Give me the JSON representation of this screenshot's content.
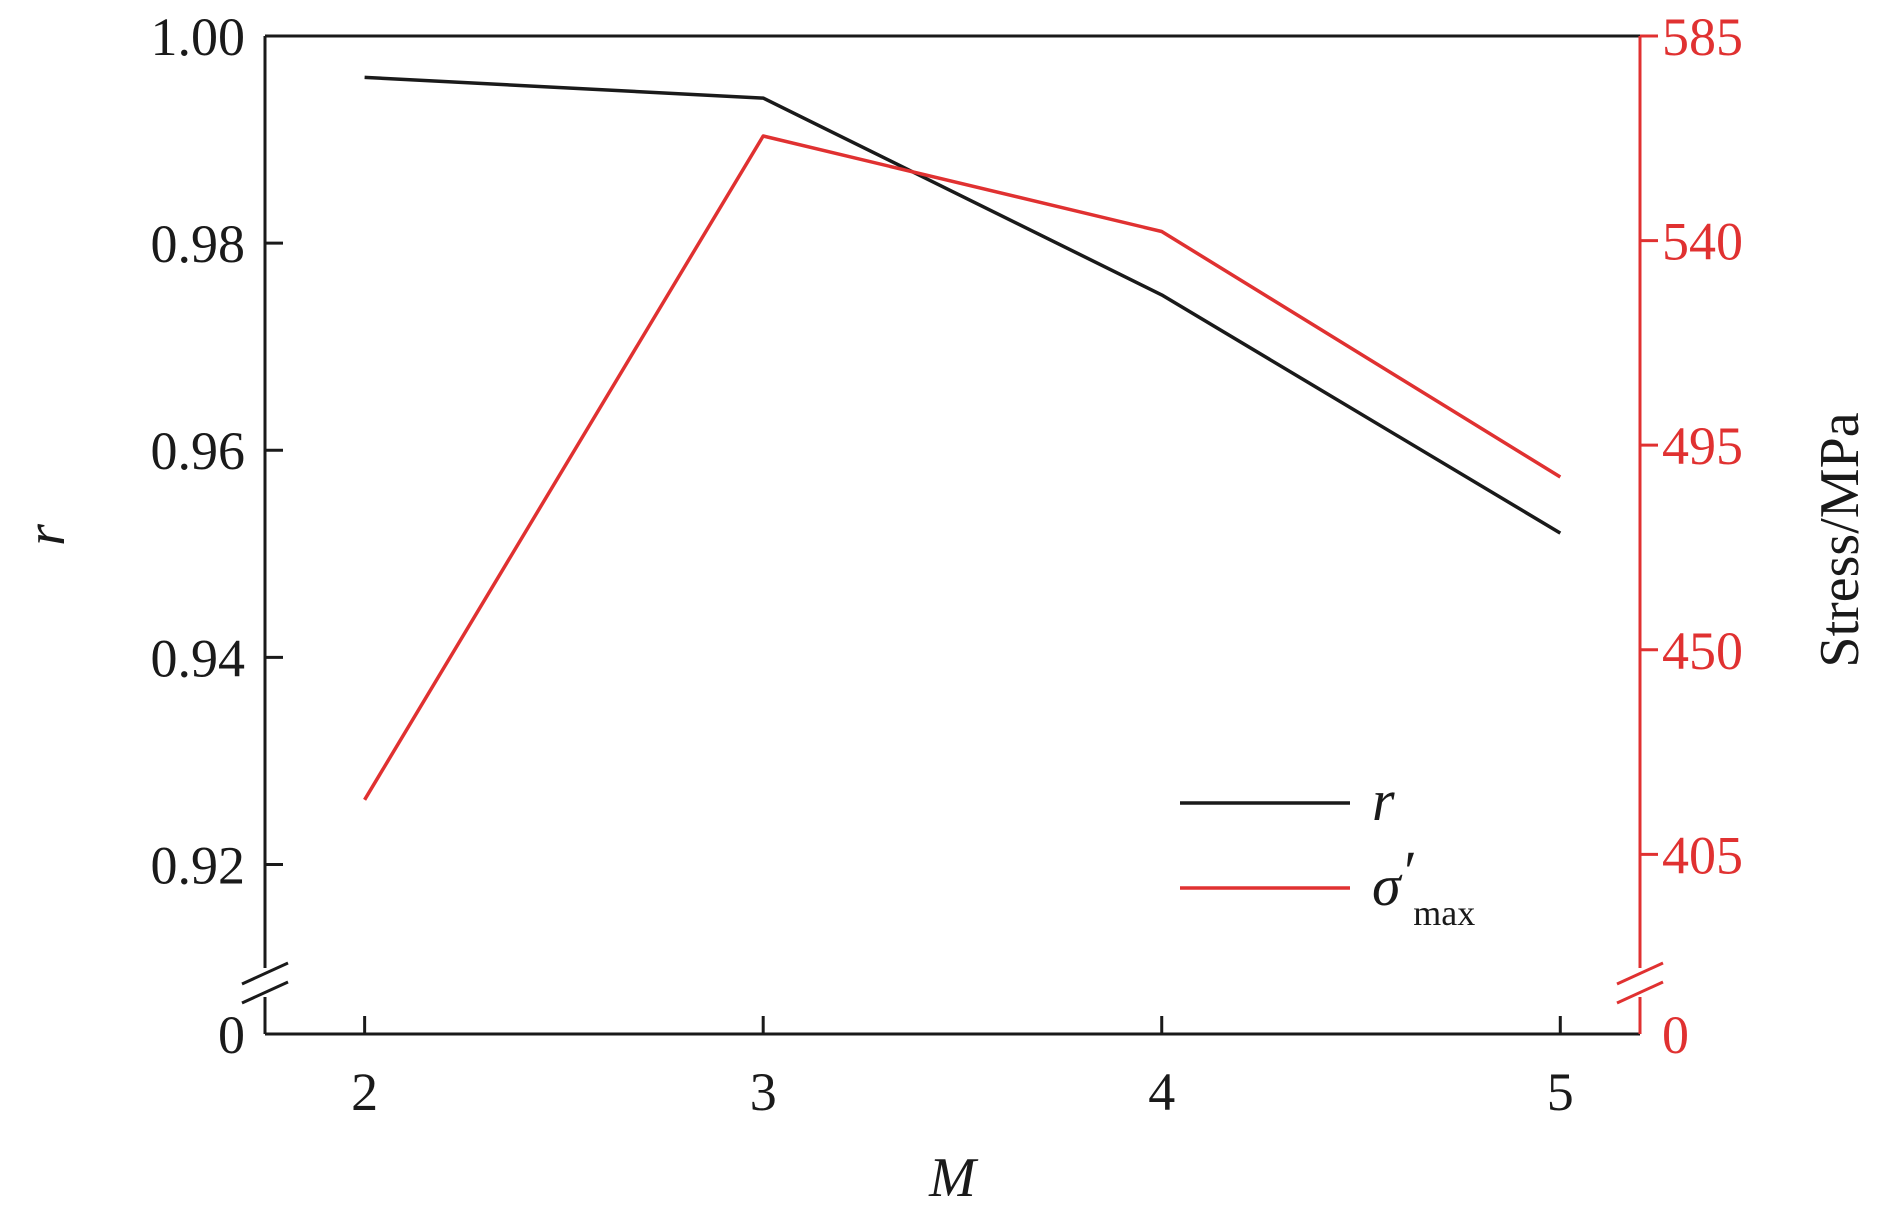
{
  "chart_data": {
    "type": "line",
    "x": [
      2,
      3,
      4,
      5
    ],
    "xlabel": "M",
    "x_ticks": [
      "2",
      "3",
      "4",
      "5"
    ],
    "xlim": [
      1.75,
      5.2
    ],
    "left_axis": {
      "label": "r",
      "ylim": [
        0.91,
        1.0
      ],
      "ticks": [
        1.0,
        0.98,
        0.96,
        0.94,
        0.92
      ],
      "tick_labels": [
        "1.00",
        "0.98",
        "0.96",
        "0.94",
        "0.92"
      ],
      "break_label": "0"
    },
    "right_axis": {
      "label": "Stress/MPa",
      "ylim": [
        380,
        585
      ],
      "ticks": [
        585,
        540,
        495,
        450,
        405
      ],
      "tick_labels": [
        "585",
        "540",
        "495",
        "450",
        "405"
      ],
      "break_label": "0",
      "color": "#e03131"
    },
    "series": [
      {
        "name": "r",
        "axis": "left",
        "color": "#1a1a1a",
        "values": [
          0.996,
          0.994,
          0.975,
          0.952
        ]
      },
      {
        "name": "σ′max",
        "axis": "right",
        "color": "#e03131",
        "values": [
          417,
          563,
          542,
          488
        ]
      }
    ],
    "legend": {
      "position": "lower-right",
      "items": [
        {
          "symbol": "r",
          "sub": "",
          "prime": ""
        },
        {
          "symbol": "σ",
          "prime": "′",
          "sub": "max"
        }
      ]
    },
    "grid": false,
    "axis_break": true
  }
}
